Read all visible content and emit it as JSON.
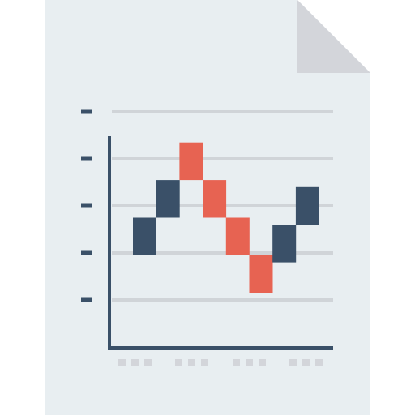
{
  "icon": {
    "name": "document-chart-icon",
    "colors": {
      "page": "#E8EEF1",
      "fold": "#D3D5DA",
      "axis": "#3A5068",
      "gridline": "#D0D4D8",
      "tick_placeholder": "#D3D5DA",
      "rising": "#3A5068",
      "falling": "#E76352"
    }
  },
  "chart_data": {
    "type": "waterfall",
    "ylim": [
      0,
      5
    ],
    "y_tick_count": 5,
    "x_placeholder_groups": 4,
    "x_placeholder_squares_per_group": 3,
    "bars": [
      {
        "start": 1.95,
        "end": 2.75,
        "direction": "up"
      },
      {
        "start": 2.75,
        "end": 3.55,
        "direction": "up"
      },
      {
        "start": 4.35,
        "end": 3.55,
        "direction": "down"
      },
      {
        "start": 3.55,
        "end": 2.75,
        "direction": "down"
      },
      {
        "start": 2.75,
        "end": 1.95,
        "direction": "down"
      },
      {
        "start": 1.95,
        "end": 1.15,
        "direction": "down"
      },
      {
        "start": 1.8,
        "end": 2.6,
        "direction": "up"
      },
      {
        "start": 2.6,
        "end": 3.4,
        "direction": "up"
      }
    ]
  }
}
